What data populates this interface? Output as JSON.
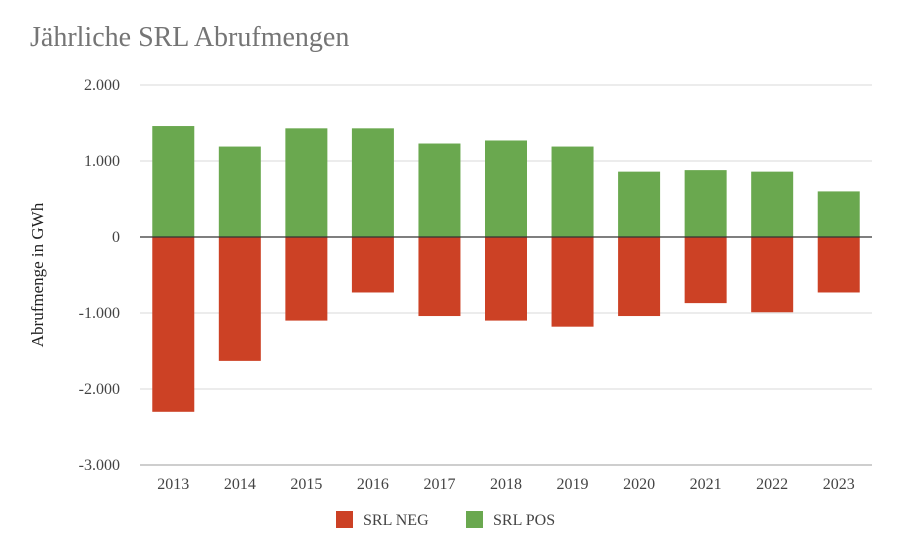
{
  "chart_data": {
    "type": "bar",
    "stacked": true,
    "title": "Jährliche SRL Abrufmengen",
    "xlabel": "",
    "ylabel": "Abrufmenge in GWh",
    "ylim": [
      -3000,
      2000
    ],
    "yticks": [
      2000,
      1000,
      0,
      -1000,
      -2000,
      -3000
    ],
    "ytick_labels": [
      "2.000",
      "1.000",
      "0",
      "-1.000",
      "-2.000",
      "-3.000"
    ],
    "grid": true,
    "legend_position": "bottom",
    "categories": [
      "2013",
      "2014",
      "2015",
      "2016",
      "2017",
      "2018",
      "2019",
      "2020",
      "2021",
      "2022",
      "2023"
    ],
    "series": [
      {
        "name": "SRL NEG",
        "color": "#cc4125",
        "values": [
          -2300,
          -1630,
          -1100,
          -730,
          -1040,
          -1100,
          -1180,
          -1040,
          -870,
          -990,
          -730
        ]
      },
      {
        "name": "SRL POS",
        "color": "#6aa84f",
        "values": [
          1460,
          1190,
          1430,
          1430,
          1230,
          1270,
          1190,
          860,
          880,
          860,
          600
        ]
      }
    ]
  }
}
